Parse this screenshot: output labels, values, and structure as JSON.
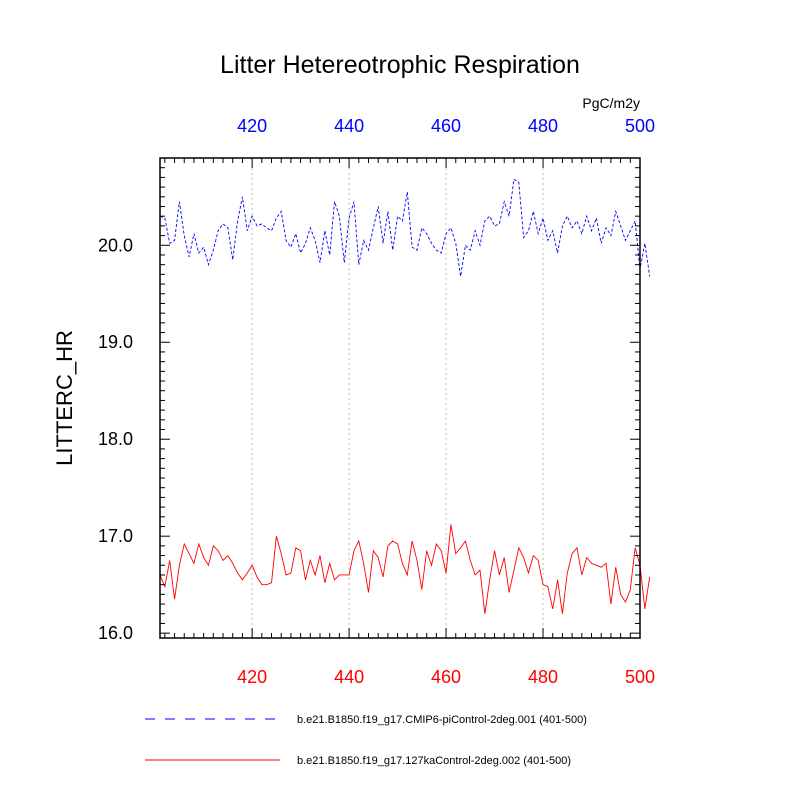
{
  "chart_data": {
    "type": "line",
    "title": "Litter Hetereotrophic Respiration",
    "units": "PgC/m2y",
    "ylabel": "LITTERC_HR",
    "xlabel": "",
    "xlim": [
      401,
      500
    ],
    "ylim": [
      15.95,
      20.9
    ],
    "x_ticks": [
      420,
      440,
      460,
      480,
      500
    ],
    "x_tick_labels": [
      "420",
      "440",
      "460",
      "480",
      "500"
    ],
    "y_ticks": [
      16.0,
      17.0,
      18.0,
      19.0,
      20.0
    ],
    "y_tick_labels": [
      "16.0",
      "17.0",
      "18.0",
      "19.0",
      "20.0"
    ],
    "grid": "vertical dotted at x ticks",
    "colors": {
      "series1": "#0000ff",
      "series2": "#ff0000",
      "axis": "#000000",
      "grid": "#bbbbbb"
    },
    "legend_position": "bottom",
    "series": [
      {
        "name": "b.e21.B1850.f19_g17.CMIP6-piControl-2deg.001 (401-500)",
        "color": "#0000ff",
        "dash": "dashed",
        "x_start": 401,
        "values": [
          20.3,
          20.28,
          20.02,
          20.05,
          20.45,
          20.1,
          19.88,
          20.12,
          19.92,
          19.98,
          19.8,
          19.95,
          20.15,
          20.22,
          20.18,
          19.85,
          20.25,
          20.5,
          20.15,
          20.3,
          20.2,
          20.22,
          20.18,
          20.15,
          20.28,
          20.35,
          20.05,
          19.98,
          20.12,
          19.92,
          20.02,
          20.18,
          20.05,
          19.82,
          20.15,
          19.9,
          20.45,
          20.3,
          19.82,
          20.28,
          20.45,
          19.8,
          20.05,
          19.95,
          20.18,
          20.4,
          20.02,
          20.35,
          19.95,
          20.3,
          20.25,
          20.55,
          19.98,
          19.95,
          20.18,
          20.12,
          20.02,
          19.95,
          19.92,
          20.12,
          20.18,
          20.02,
          19.68,
          20.0,
          19.95,
          20.15,
          20.0,
          20.25,
          20.3,
          20.2,
          20.22,
          20.45,
          20.3,
          20.68,
          20.65,
          20.08,
          20.15,
          20.35,
          20.12,
          20.28,
          20.05,
          20.15,
          19.92,
          20.2,
          20.3,
          20.18,
          20.25,
          20.12,
          20.3,
          20.15,
          20.28,
          20.02,
          20.18,
          20.1,
          20.35,
          20.2,
          20.05,
          20.15,
          20.25,
          19.75,
          20.02,
          19.68
        ]
      },
      {
        "name": "b.e21.B1850.f19_g17.127kaControl-2deg.002 (401-500)",
        "color": "#ff0000",
        "dash": "solid",
        "x_start": 401,
        "values": [
          16.6,
          16.48,
          16.75,
          16.35,
          16.7,
          16.92,
          16.82,
          16.72,
          16.92,
          16.78,
          16.7,
          16.9,
          16.85,
          16.75,
          16.8,
          16.72,
          16.62,
          16.55,
          16.62,
          16.7,
          16.58,
          16.5,
          16.5,
          16.52,
          17.0,
          16.82,
          16.6,
          16.62,
          16.88,
          16.85,
          16.55,
          16.75,
          16.6,
          16.8,
          16.52,
          16.72,
          16.55,
          16.6,
          16.6,
          16.6,
          16.85,
          16.95,
          16.72,
          16.42,
          16.85,
          16.78,
          16.58,
          16.9,
          16.95,
          16.92,
          16.72,
          16.6,
          16.95,
          16.75,
          16.45,
          16.85,
          16.7,
          16.92,
          16.85,
          16.62,
          17.12,
          16.82,
          16.88,
          16.95,
          16.75,
          16.6,
          16.65,
          16.2,
          16.55,
          16.85,
          16.6,
          16.78,
          16.42,
          16.65,
          16.88,
          16.78,
          16.62,
          16.8,
          16.75,
          16.5,
          16.48,
          16.25,
          16.55,
          16.2,
          16.62,
          16.82,
          16.88,
          16.6,
          16.78,
          16.72,
          16.7,
          16.68,
          16.72,
          16.3,
          16.68,
          16.4,
          16.32,
          16.45,
          16.88,
          16.7,
          16.25,
          16.58
        ]
      }
    ]
  }
}
